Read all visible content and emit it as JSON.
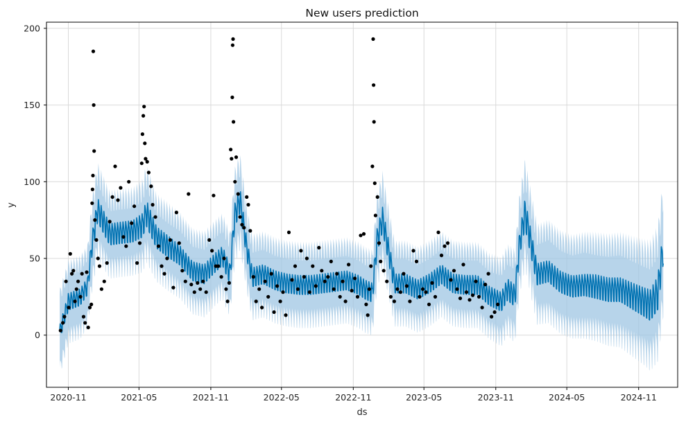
{
  "chart_data": {
    "type": "line",
    "title": "New users prediction",
    "xlabel": "ds",
    "ylabel": "y",
    "xlim": [
      "2020-09-06",
      "2025-02-09"
    ],
    "ylim": [
      -34,
      204
    ],
    "grid": true,
    "x_ticks": [
      "2020-11",
      "2021-05",
      "2021-11",
      "2022-05",
      "2022-11",
      "2023-05",
      "2023-11",
      "2024-05",
      "2024-11"
    ],
    "y_ticks": [
      0,
      50,
      100,
      150,
      200
    ],
    "colors": {
      "forecast": "#0072B2",
      "interval": "#9fc6e3",
      "actual": "#000000",
      "grid": "#d9d9d9"
    },
    "series": [
      {
        "role": "forecast",
        "style": "line",
        "x": [
          "2020-10-10",
          "2020-11-01",
          "2020-12-01",
          "2020-12-20",
          "2021-01-01",
          "2021-01-15",
          "2021-02-15",
          "2021-03-15",
          "2021-04-15",
          "2021-05-10",
          "2021-05-20",
          "2021-06-15",
          "2021-07-15",
          "2021-08-15",
          "2021-09-15",
          "2021-10-15",
          "2021-11-10",
          "2021-12-01",
          "2021-12-20",
          "2022-01-01",
          "2022-01-15",
          "2022-02-01",
          "2022-02-15",
          "2022-03-15",
          "2022-04-15",
          "2022-05-15",
          "2022-06-15",
          "2022-07-15",
          "2022-08-15",
          "2022-09-15",
          "2022-10-15",
          "2022-11-15",
          "2022-12-01",
          "2022-12-20",
          "2023-01-01",
          "2023-01-15",
          "2023-02-15",
          "2023-03-15",
          "2023-04-15",
          "2023-05-15",
          "2023-06-15",
          "2023-07-15",
          "2023-08-15",
          "2023-09-15",
          "2023-10-15",
          "2023-11-15",
          "2023-12-01",
          "2023-12-20",
          "2024-01-01",
          "2024-01-15",
          "2024-02-15",
          "2024-03-15",
          "2024-04-15",
          "2024-05-15",
          "2024-06-15",
          "2024-07-15",
          "2024-08-15",
          "2024-09-15",
          "2024-10-15",
          "2024-11-15",
          "2024-12-01",
          "2024-12-20",
          "2025-01-03"
        ],
        "y": [
          2,
          22,
          25,
          32,
          60,
          82,
          66,
          67,
          68,
          72,
          80,
          64,
          58,
          52,
          42,
          40,
          47,
          52,
          40,
          78,
          88,
          57,
          38,
          40,
          36,
          34,
          33,
          33,
          34,
          35,
          36,
          33,
          30,
          28,
          62,
          76,
          34,
          34,
          30,
          34,
          40,
          34,
          33,
          33,
          26,
          22,
          30,
          26,
          60,
          80,
          40,
          42,
          35,
          32,
          33,
          32,
          30,
          30,
          26,
          22,
          20,
          28,
          58
        ],
        "amplitude": [
          6,
          7,
          7,
          7,
          9,
          10,
          9,
          9,
          9,
          10,
          11,
          9,
          9,
          8,
          8,
          8,
          8,
          8,
          8,
          10,
          10,
          8,
          8,
          8,
          8,
          8,
          8,
          8,
          8,
          8,
          8,
          8,
          8,
          8,
          10,
          10,
          8,
          8,
          8,
          8,
          8,
          8,
          8,
          8,
          8,
          8,
          9,
          9,
          10,
          12,
          9,
          9,
          9,
          9,
          9,
          10,
          10,
          10,
          11,
          12,
          13,
          14,
          14
        ]
      },
      {
        "role": "uncertainty_interval",
        "style": "band",
        "x": [
          "2020-10-10",
          "2020-11-01",
          "2020-12-01",
          "2020-12-20",
          "2021-01-01",
          "2021-01-15",
          "2021-02-15",
          "2021-03-15",
          "2021-04-15",
          "2021-05-10",
          "2021-05-20",
          "2021-06-15",
          "2021-07-15",
          "2021-08-15",
          "2021-09-15",
          "2021-10-15",
          "2021-11-10",
          "2021-12-01",
          "2021-12-20",
          "2022-01-01",
          "2022-01-15",
          "2022-02-01",
          "2022-02-15",
          "2022-03-15",
          "2022-04-15",
          "2022-05-15",
          "2022-06-15",
          "2022-07-15",
          "2022-08-15",
          "2022-09-15",
          "2022-10-15",
          "2022-11-15",
          "2022-12-01",
          "2022-12-20",
          "2023-01-01",
          "2023-01-15",
          "2023-02-15",
          "2023-03-15",
          "2023-04-15",
          "2023-05-15",
          "2023-06-15",
          "2023-07-15",
          "2023-08-15",
          "2023-09-15",
          "2023-10-15",
          "2023-11-15",
          "2023-12-01",
          "2023-12-20",
          "2024-01-01",
          "2024-01-15",
          "2024-02-15",
          "2024-03-15",
          "2024-04-15",
          "2024-05-15",
          "2024-06-15",
          "2024-07-15",
          "2024-08-15",
          "2024-09-15",
          "2024-10-15",
          "2024-11-15",
          "2024-12-01",
          "2024-12-20",
          "2025-01-03"
        ],
        "half_width": [
          24,
          22,
          22,
          22,
          24,
          24,
          22,
          22,
          22,
          23,
          24,
          22,
          22,
          22,
          22,
          22,
          22,
          22,
          22,
          24,
          24,
          22,
          22,
          22,
          22,
          22,
          22,
          22,
          22,
          22,
          22,
          22,
          22,
          22,
          24,
          24,
          22,
          22,
          22,
          22,
          22,
          22,
          22,
          22,
          22,
          23,
          23,
          24,
          26,
          27,
          26,
          27,
          27,
          27,
          28,
          28,
          29,
          30,
          31,
          32,
          33,
          34,
          35
        ]
      },
      {
        "role": "actual",
        "style": "points",
        "points": [
          [
            "2020-10-12",
            3
          ],
          [
            "2020-10-18",
            8
          ],
          [
            "2020-10-22",
            12
          ],
          [
            "2020-10-26",
            35
          ],
          [
            "2020-11-02",
            18
          ],
          [
            "2020-11-06",
            53
          ],
          [
            "2020-11-10",
            40
          ],
          [
            "2020-11-14",
            42
          ],
          [
            "2020-11-18",
            22
          ],
          [
            "2020-11-22",
            30
          ],
          [
            "2020-11-26",
            35
          ],
          [
            "2020-12-02",
            25
          ],
          [
            "2020-12-06",
            40
          ],
          [
            "2020-12-10",
            12
          ],
          [
            "2020-12-14",
            8
          ],
          [
            "2020-12-18",
            41
          ],
          [
            "2020-12-22",
            5
          ],
          [
            "2020-12-26",
            18
          ],
          [
            "2020-12-30",
            20
          ],
          [
            "2021-01-01",
            86
          ],
          [
            "2021-01-02",
            95
          ],
          [
            "2021-01-03",
            104
          ],
          [
            "2021-01-04",
            185
          ],
          [
            "2021-01-05",
            150
          ],
          [
            "2021-01-06",
            120
          ],
          [
            "2021-01-08",
            75
          ],
          [
            "2021-01-12",
            62
          ],
          [
            "2021-01-16",
            50
          ],
          [
            "2021-01-20",
            45
          ],
          [
            "2021-01-25",
            30
          ],
          [
            "2021-02-01",
            35
          ],
          [
            "2021-02-08",
            47
          ],
          [
            "2021-02-15",
            74
          ],
          [
            "2021-02-22",
            90
          ],
          [
            "2021-03-01",
            110
          ],
          [
            "2021-03-08",
            88
          ],
          [
            "2021-03-15",
            96
          ],
          [
            "2021-03-22",
            64
          ],
          [
            "2021-03-29",
            58
          ],
          [
            "2021-04-05",
            100
          ],
          [
            "2021-04-12",
            73
          ],
          [
            "2021-04-19",
            84
          ],
          [
            "2021-04-26",
            47
          ],
          [
            "2021-05-03",
            60
          ],
          [
            "2021-05-08",
            112
          ],
          [
            "2021-05-10",
            131
          ],
          [
            "2021-05-12",
            143
          ],
          [
            "2021-05-14",
            149
          ],
          [
            "2021-05-16",
            125
          ],
          [
            "2021-05-18",
            115
          ],
          [
            "2021-05-22",
            113
          ],
          [
            "2021-05-26",
            106
          ],
          [
            "2021-06-01",
            97
          ],
          [
            "2021-06-05",
            85
          ],
          [
            "2021-06-12",
            77
          ],
          [
            "2021-06-20",
            58
          ],
          [
            "2021-06-28",
            45
          ],
          [
            "2021-07-05",
            40
          ],
          [
            "2021-07-12",
            50
          ],
          [
            "2021-07-20",
            62
          ],
          [
            "2021-07-28",
            31
          ],
          [
            "2021-08-05",
            80
          ],
          [
            "2021-08-12",
            60
          ],
          [
            "2021-08-20",
            42
          ],
          [
            "2021-08-28",
            35
          ],
          [
            "2021-09-05",
            92
          ],
          [
            "2021-09-12",
            33
          ],
          [
            "2021-09-20",
            28
          ],
          [
            "2021-09-28",
            34
          ],
          [
            "2021-10-05",
            30
          ],
          [
            "2021-10-12",
            35
          ],
          [
            "2021-10-20",
            28
          ],
          [
            "2021-10-28",
            62
          ],
          [
            "2021-11-04",
            55
          ],
          [
            "2021-11-08",
            91
          ],
          [
            "2021-11-14",
            45
          ],
          [
            "2021-11-20",
            45
          ],
          [
            "2021-11-28",
            38
          ],
          [
            "2021-12-05",
            50
          ],
          [
            "2021-12-10",
            30
          ],
          [
            "2021-12-14",
            22
          ],
          [
            "2021-12-18",
            34
          ],
          [
            "2021-12-22",
            121
          ],
          [
            "2021-12-24",
            115
          ],
          [
            "2021-12-26",
            155
          ],
          [
            "2021-12-27",
            189
          ],
          [
            "2021-12-28",
            193
          ],
          [
            "2021-12-29",
            139
          ],
          [
            "2022-01-02",
            100
          ],
          [
            "2022-01-05",
            116
          ],
          [
            "2022-01-10",
            92
          ],
          [
            "2022-01-15",
            77
          ],
          [
            "2022-01-20",
            72
          ],
          [
            "2022-01-25",
            70
          ],
          [
            "2022-02-01",
            90
          ],
          [
            "2022-02-05",
            85
          ],
          [
            "2022-02-10",
            68
          ],
          [
            "2022-02-18",
            38
          ],
          [
            "2022-02-25",
            22
          ],
          [
            "2022-03-05",
            30
          ],
          [
            "2022-03-12",
            18
          ],
          [
            "2022-03-20",
            35
          ],
          [
            "2022-03-28",
            25
          ],
          [
            "2022-04-05",
            40
          ],
          [
            "2022-04-12",
            15
          ],
          [
            "2022-04-20",
            32
          ],
          [
            "2022-04-28",
            22
          ],
          [
            "2022-05-05",
            28
          ],
          [
            "2022-05-12",
            13
          ],
          [
            "2022-05-20",
            67
          ],
          [
            "2022-05-28",
            36
          ],
          [
            "2022-06-05",
            45
          ],
          [
            "2022-06-12",
            30
          ],
          [
            "2022-06-20",
            55
          ],
          [
            "2022-06-28",
            38
          ],
          [
            "2022-07-05",
            50
          ],
          [
            "2022-07-12",
            28
          ],
          [
            "2022-07-20",
            45
          ],
          [
            "2022-07-28",
            32
          ],
          [
            "2022-08-05",
            57
          ],
          [
            "2022-08-12",
            42
          ],
          [
            "2022-08-20",
            35
          ],
          [
            "2022-08-28",
            38
          ],
          [
            "2022-09-05",
            48
          ],
          [
            "2022-09-12",
            30
          ],
          [
            "2022-09-20",
            40
          ],
          [
            "2022-09-28",
            25
          ],
          [
            "2022-10-05",
            35
          ],
          [
            "2022-10-12",
            22
          ],
          [
            "2022-10-20",
            46
          ],
          [
            "2022-10-28",
            29
          ],
          [
            "2022-11-05",
            37
          ],
          [
            "2022-11-12",
            25
          ],
          [
            "2022-11-20",
            65
          ],
          [
            "2022-11-28",
            66
          ],
          [
            "2022-12-04",
            20
          ],
          [
            "2022-12-08",
            13
          ],
          [
            "2022-12-12",
            30
          ],
          [
            "2022-12-16",
            45
          ],
          [
            "2022-12-20",
            110
          ],
          [
            "2022-12-22",
            193
          ],
          [
            "2022-12-23",
            163
          ],
          [
            "2022-12-24",
            139
          ],
          [
            "2022-12-26",
            99
          ],
          [
            "2022-12-28",
            78
          ],
          [
            "2023-01-02",
            90
          ],
          [
            "2023-01-06",
            60
          ],
          [
            "2023-01-10",
            48
          ],
          [
            "2023-01-18",
            42
          ],
          [
            "2023-01-26",
            35
          ],
          [
            "2023-02-05",
            25
          ],
          [
            "2023-02-14",
            22
          ],
          [
            "2023-02-22",
            30
          ],
          [
            "2023-03-02",
            28
          ],
          [
            "2023-03-10",
            40
          ],
          [
            "2023-03-18",
            32
          ],
          [
            "2023-03-26",
            22
          ],
          [
            "2023-04-04",
            55
          ],
          [
            "2023-04-12",
            48
          ],
          [
            "2023-04-20",
            25
          ],
          [
            "2023-04-28",
            30
          ],
          [
            "2023-05-06",
            28
          ],
          [
            "2023-05-14",
            20
          ],
          [
            "2023-05-22",
            34
          ],
          [
            "2023-05-30",
            25
          ],
          [
            "2023-06-07",
            67
          ],
          [
            "2023-06-15",
            52
          ],
          [
            "2023-06-23",
            58
          ],
          [
            "2023-07-01",
            60
          ],
          [
            "2023-07-09",
            36
          ],
          [
            "2023-07-17",
            42
          ],
          [
            "2023-07-25",
            30
          ],
          [
            "2023-08-02",
            24
          ],
          [
            "2023-08-10",
            46
          ],
          [
            "2023-08-18",
            28
          ],
          [
            "2023-08-26",
            23
          ],
          [
            "2023-09-03",
            26
          ],
          [
            "2023-09-11",
            35
          ],
          [
            "2023-09-19",
            25
          ],
          [
            "2023-09-27",
            18
          ],
          [
            "2023-10-05",
            33
          ],
          [
            "2023-10-13",
            40
          ],
          [
            "2023-10-21",
            12
          ],
          [
            "2023-10-29",
            15
          ],
          [
            "2023-11-06",
            20
          ]
        ]
      }
    ]
  }
}
